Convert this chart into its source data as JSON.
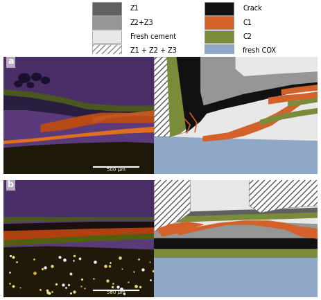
{
  "legend_items": [
    {
      "label": "Z1",
      "color": "#606060",
      "hatch": null
    },
    {
      "label": "Z2+Z3",
      "color": "#969696",
      "hatch": null
    },
    {
      "label": "Fresh cement",
      "color": "#e8e8e8",
      "hatch": null
    },
    {
      "label": "Z1 + Z2 + Z3",
      "color": "white",
      "hatch": "////"
    },
    {
      "label": "Crack",
      "color": "#111111",
      "hatch": null
    },
    {
      "label": "C1",
      "color": "#d2622a",
      "hatch": null
    },
    {
      "label": "C2",
      "color": "#7a8c3a",
      "hatch": null
    },
    {
      "label": "fresh COX",
      "color": "#8fa8c8",
      "hatch": null
    }
  ],
  "col_Z1": "#606060",
  "col_Z2Z3": "#969696",
  "col_fresh_cement": "#e8e8e8",
  "col_crack": "#111111",
  "col_C1": "#d2622a",
  "col_C2": "#7a8c3a",
  "col_COX": "#8fa8c8"
}
